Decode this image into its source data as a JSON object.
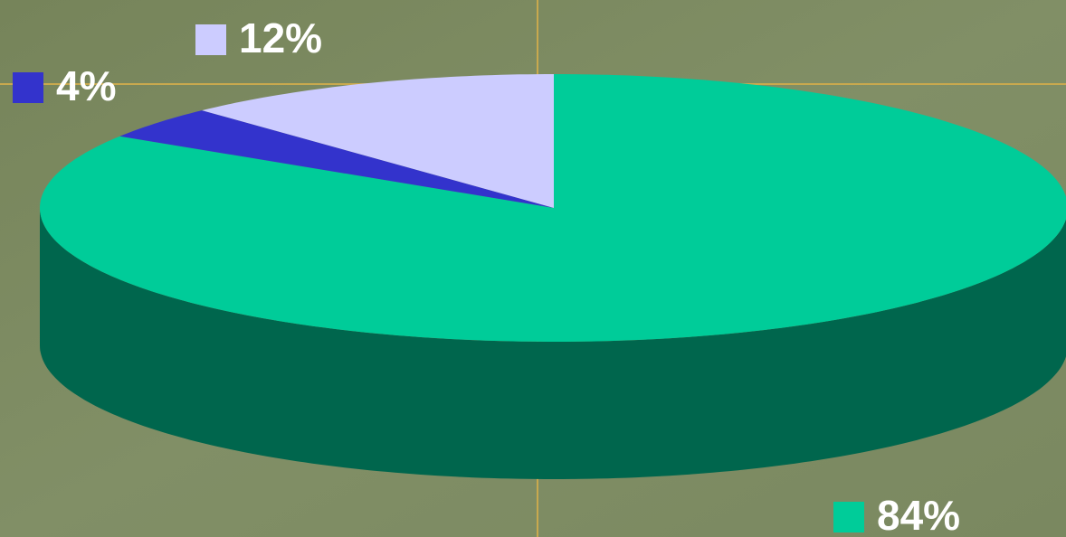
{
  "chart_data": {
    "type": "pie3d",
    "values": [
      84,
      4,
      12
    ],
    "value_labels": [
      "84%",
      "4%",
      "12%"
    ],
    "colors": [
      "#00cc99",
      "#3333cc",
      "#ccccff"
    ]
  }
}
